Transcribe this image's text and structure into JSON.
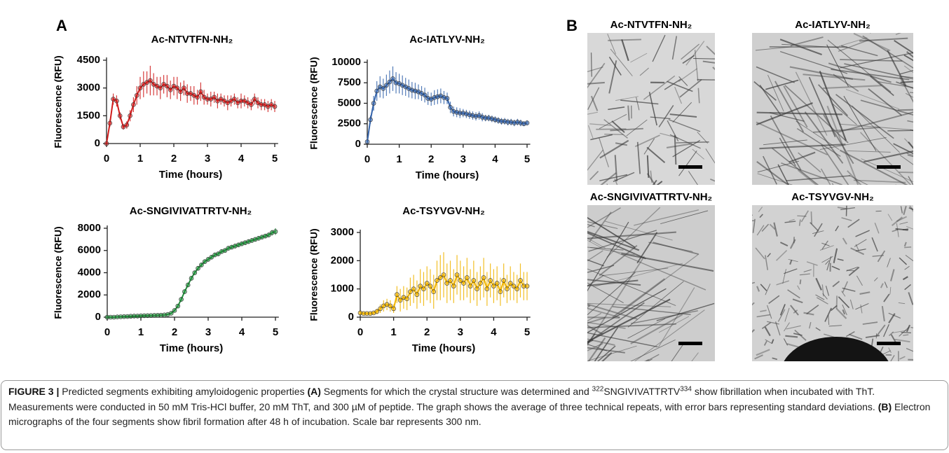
{
  "panel_labels": [
    "A",
    "B"
  ],
  "chart_data": [
    {
      "type": "line",
      "title": "Ac-NTVTFN-NH₂",
      "xlabel": "Time (hours)",
      "ylabel": "Fluorescence (RFU)",
      "color": "#d01c1c",
      "x": [
        0,
        0.1,
        0.2,
        0.3,
        0.4,
        0.5,
        0.6,
        0.7,
        0.8,
        0.9,
        1,
        1.1,
        1.2,
        1.3,
        1.4,
        1.5,
        1.6,
        1.7,
        1.8,
        1.9,
        2,
        2.1,
        2.2,
        2.3,
        2.4,
        2.5,
        2.6,
        2.7,
        2.8,
        2.9,
        3,
        3.1,
        3.2,
        3.3,
        3.4,
        3.5,
        3.6,
        3.7,
        3.8,
        3.9,
        4,
        4.1,
        4.2,
        4.3,
        4.4,
        4.5,
        4.6,
        4.7,
        4.8,
        4.9,
        5
      ],
      "values": [
        0,
        1100,
        2400,
        2300,
        1500,
        900,
        1000,
        1500,
        2100,
        2600,
        3000,
        3200,
        3300,
        3400,
        3200,
        3100,
        3000,
        3200,
        3100,
        2900,
        3100,
        3000,
        2800,
        3000,
        2700,
        2700,
        2600,
        2500,
        2800,
        2500,
        2400,
        2400,
        2500,
        2300,
        2400,
        2300,
        2200,
        2300,
        2400,
        2200,
        2300,
        2300,
        2200,
        2100,
        2400,
        2200,
        2100,
        2100,
        2000,
        2100,
        2000
      ],
      "errors": [
        0,
        200,
        300,
        300,
        200,
        150,
        200,
        300,
        400,
        500,
        600,
        700,
        600,
        800,
        600,
        500,
        600,
        500,
        600,
        500,
        500,
        600,
        500,
        400,
        500,
        400,
        500,
        400,
        500,
        400,
        300,
        400,
        300,
        400,
        300,
        300,
        400,
        300,
        300,
        300,
        400,
        300,
        300,
        300,
        300,
        300,
        300,
        300,
        300,
        300,
        300
      ],
      "xlim": [
        0,
        5.1
      ],
      "xticks": [
        0,
        1,
        2,
        3,
        4,
        5
      ],
      "ylim": [
        0,
        4500
      ],
      "yticks": [
        0,
        1500,
        3000,
        4500
      ]
    },
    {
      "type": "line",
      "title": "Ac-IATLYV-NH₂",
      "xlabel": "Time (hours)",
      "ylabel": "Fluorescence (RFU)",
      "color": "#3564ab",
      "x": [
        0,
        0.1,
        0.2,
        0.3,
        0.4,
        0.5,
        0.6,
        0.7,
        0.8,
        0.9,
        1,
        1.1,
        1.2,
        1.3,
        1.4,
        1.5,
        1.6,
        1.7,
        1.8,
        1.9,
        2,
        2.1,
        2.2,
        2.3,
        2.4,
        2.5,
        2.6,
        2.7,
        2.8,
        2.9,
        3,
        3.1,
        3.2,
        3.3,
        3.4,
        3.5,
        3.6,
        3.7,
        3.8,
        3.9,
        4,
        4.1,
        4.2,
        4.3,
        4.4,
        4.5,
        4.6,
        4.7,
        4.8,
        4.9,
        5
      ],
      "values": [
        300,
        3000,
        5000,
        6500,
        7000,
        6800,
        7200,
        7600,
        8000,
        7500,
        7400,
        7200,
        7000,
        6800,
        6600,
        6500,
        6400,
        6200,
        6000,
        5600,
        5500,
        5700,
        5800,
        5900,
        5700,
        5600,
        4500,
        4000,
        3900,
        3800,
        3800,
        3700,
        3600,
        3500,
        3400,
        3500,
        3300,
        3200,
        3200,
        3100,
        3000,
        2900,
        2800,
        2800,
        2700,
        2700,
        2600,
        2700,
        2600,
        2500,
        2600
      ],
      "errors": [
        100,
        500,
        900,
        1200,
        1300,
        1200,
        1300,
        1400,
        1500,
        1300,
        1200,
        1200,
        1100,
        1100,
        1000,
        1000,
        900,
        900,
        900,
        800,
        800,
        900,
        900,
        900,
        800,
        700,
        700,
        600,
        600,
        600,
        500,
        500,
        500,
        500,
        500,
        500,
        500,
        400,
        400,
        400,
        400,
        400,
        400,
        400,
        400,
        400,
        400,
        400,
        400,
        300,
        300
      ],
      "xlim": [
        0,
        5.1
      ],
      "xticks": [
        0,
        1,
        2,
        3,
        4,
        5
      ],
      "ylim": [
        0,
        10000
      ],
      "yticks": [
        0,
        2500,
        5000,
        7500,
        10000
      ]
    },
    {
      "type": "line",
      "title": "Ac-SNGIVIVATTRTV-NH₂",
      "xlabel": "Time (hours)",
      "ylabel": "Fluorescence (RFU)",
      "color": "#1f8f3a",
      "x": [
        0,
        0.1,
        0.2,
        0.3,
        0.4,
        0.5,
        0.6,
        0.7,
        0.8,
        0.9,
        1,
        1.1,
        1.2,
        1.3,
        1.4,
        1.5,
        1.6,
        1.7,
        1.8,
        1.9,
        2,
        2.1,
        2.2,
        2.3,
        2.4,
        2.5,
        2.6,
        2.7,
        2.8,
        2.9,
        3,
        3.1,
        3.2,
        3.3,
        3.4,
        3.5,
        3.6,
        3.7,
        3.8,
        3.9,
        4,
        4.1,
        4.2,
        4.3,
        4.4,
        4.5,
        4.6,
        4.7,
        4.8,
        4.9,
        5
      ],
      "values": [
        0,
        0,
        0,
        20,
        40,
        50,
        60,
        80,
        100,
        100,
        120,
        130,
        140,
        150,
        160,
        170,
        180,
        200,
        250,
        350,
        600,
        1000,
        1600,
        2300,
        2900,
        3500,
        4000,
        4400,
        4700,
        5000,
        5200,
        5400,
        5600,
        5700,
        5900,
        6000,
        6200,
        6300,
        6400,
        6500,
        6600,
        6700,
        6800,
        6900,
        7000,
        7100,
        7200,
        7300,
        7400,
        7600,
        7700
      ],
      "errors": [
        50,
        50,
        50,
        50,
        50,
        50,
        50,
        50,
        50,
        50,
        50,
        50,
        50,
        50,
        50,
        50,
        50,
        50,
        50,
        50,
        100,
        150,
        200,
        200,
        200,
        200,
        200,
        200,
        200,
        200,
        200,
        200,
        200,
        200,
        200,
        200,
        200,
        200,
        200,
        200,
        200,
        200,
        200,
        200,
        200,
        200,
        200,
        200,
        200,
        250,
        300
      ],
      "xlim": [
        0,
        5.1
      ],
      "xticks": [
        0,
        1,
        2,
        3,
        4,
        5
      ],
      "ylim": [
        0,
        8000
      ],
      "yticks": [
        0,
        2000,
        4000,
        6000,
        8000
      ]
    },
    {
      "type": "line",
      "title": "Ac-TSYVGV-NH₂",
      "xlabel": "Time (hours)",
      "ylabel": "Fluorescence (RFU)",
      "color": "#f0b400",
      "x": [
        0,
        0.1,
        0.2,
        0.3,
        0.4,
        0.5,
        0.6,
        0.7,
        0.8,
        0.9,
        1,
        1.1,
        1.2,
        1.3,
        1.4,
        1.5,
        1.6,
        1.7,
        1.8,
        1.9,
        2,
        2.1,
        2.2,
        2.3,
        2.4,
        2.5,
        2.6,
        2.7,
        2.8,
        2.9,
        3,
        3.1,
        3.2,
        3.3,
        3.4,
        3.5,
        3.6,
        3.7,
        3.8,
        3.9,
        4,
        4.1,
        4.2,
        4.3,
        4.4,
        4.5,
        4.6,
        4.7,
        4.8,
        4.9,
        5
      ],
      "values": [
        150,
        130,
        130,
        130,
        150,
        200,
        300,
        400,
        450,
        400,
        300,
        800,
        600,
        700,
        650,
        900,
        1000,
        800,
        1100,
        1000,
        1200,
        1100,
        900,
        1300,
        1400,
        1500,
        1200,
        1300,
        1100,
        1500,
        1300,
        1200,
        1400,
        1100,
        1300,
        1000,
        1200,
        1400,
        1000,
        1300,
        1100,
        1200,
        900,
        1300,
        1000,
        1200,
        1100,
        1000,
        1300,
        1100,
        1100
      ],
      "errors": [
        50,
        50,
        50,
        50,
        50,
        100,
        150,
        200,
        200,
        200,
        150,
        300,
        400,
        400,
        400,
        500,
        500,
        500,
        600,
        600,
        600,
        600,
        600,
        700,
        800,
        800,
        700,
        700,
        600,
        700,
        700,
        600,
        700,
        600,
        700,
        600,
        600,
        700,
        600,
        600,
        600,
        600,
        500,
        600,
        500,
        600,
        500,
        500,
        600,
        500,
        500
      ],
      "xlim": [
        0,
        5.1
      ],
      "xticks": [
        0,
        1,
        2,
        3,
        4,
        5
      ],
      "ylim": [
        0,
        3000
      ],
      "yticks": [
        0,
        1000,
        2000,
        3000
      ]
    }
  ],
  "micrographs": [
    {
      "title": "Ac-NTVTFN-NH₂"
    },
    {
      "title": "Ac-IATLYV-NH₂"
    },
    {
      "title": "Ac-SNGIVIVATTRTV-NH₂"
    },
    {
      "title": "Ac-TSYVGV-NH₂"
    }
  ],
  "caption": {
    "figure_label": "FIGURE 3 |",
    "text_1": "Predicted segments exhibiting amyloidogenic properties",
    "label_a": "(A)",
    "text_2": "Segments for which the crystal structure was determined and",
    "sup_1": "322",
    "text_3": "SNGIVIVATTRTV",
    "sup_2": "334",
    "text_4": "show fibrillation when incubated with ThT. Measurements were conducted in 50 mM Tris-HCl buffer, 20 mM ThT, and 300 µM of peptide. The graph shows the average of three technical repeats, with error bars representing standard deviations.",
    "label_b": "(B)",
    "text_5": "Electron micrographs of the four segments show fibril formation after 48 h of incubation. Scale bar represents 300 nm."
  }
}
